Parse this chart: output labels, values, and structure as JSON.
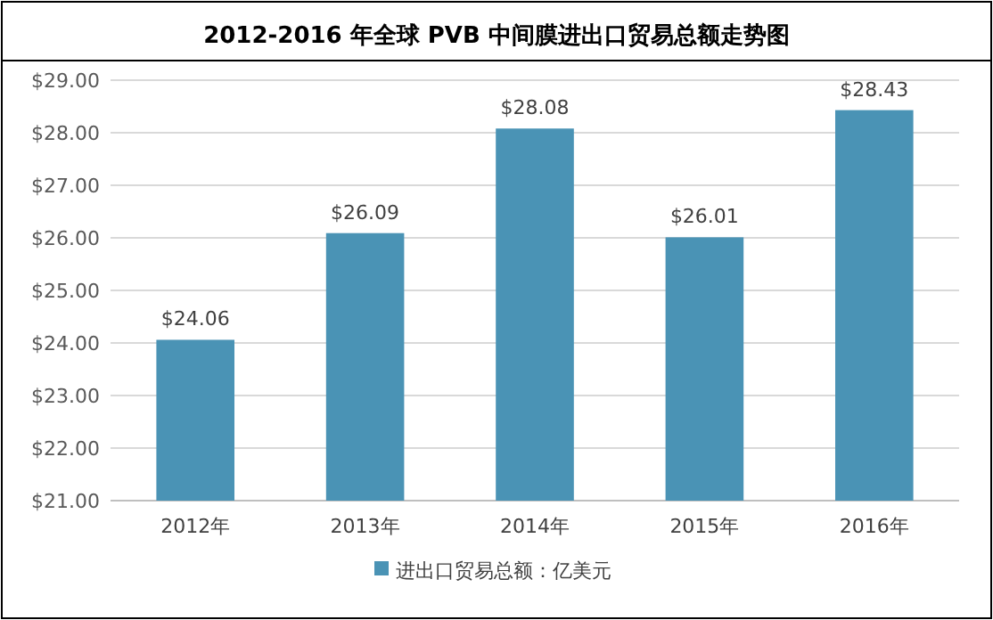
{
  "chart_data": {
    "type": "bar",
    "title": "2012-2016 年全球 PVB 中间膜进出口贸易总额走势图",
    "categories": [
      "2012年",
      "2013年",
      "2014年",
      "2015年",
      "2016年"
    ],
    "series": [
      {
        "name": "进出口贸易总额：亿美元",
        "color": "#4a93b5",
        "values": [
          24.06,
          26.09,
          28.08,
          26.01,
          28.43
        ],
        "value_labels": [
          "$24.06",
          "$26.09",
          "$28.08",
          "$26.01",
          "$28.43"
        ]
      }
    ],
    "ylim": [
      21,
      29
    ],
    "yticks": [
      {
        "value": 21,
        "label": "$21.00"
      },
      {
        "value": 22,
        "label": "$22.00"
      },
      {
        "value": 23,
        "label": "$23.00"
      },
      {
        "value": 24,
        "label": "$24.00"
      },
      {
        "value": 25,
        "label": "$25.00"
      },
      {
        "value": 26,
        "label": "$26.00"
      },
      {
        "value": 27,
        "label": "$27.00"
      },
      {
        "value": 28,
        "label": "$28.00"
      },
      {
        "value": 29,
        "label": "$29.00"
      }
    ],
    "grid": "y",
    "legend": "bottom"
  }
}
